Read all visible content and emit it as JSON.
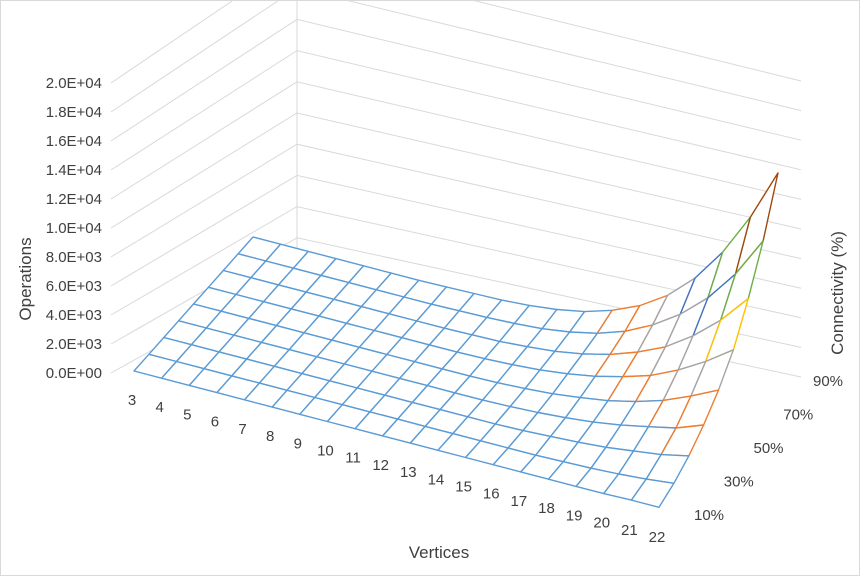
{
  "chart_data": {
    "type": "surface",
    "xlabel": "Vertices",
    "ylabel": "Connectivity (%)",
    "zlabel": "Operations",
    "x": [
      "3",
      "4",
      "5",
      "6",
      "7",
      "8",
      "9",
      "10",
      "11",
      "12",
      "13",
      "14",
      "15",
      "16",
      "17",
      "18",
      "19",
      "20",
      "21",
      "22"
    ],
    "y": [
      "10%",
      "20%",
      "30%",
      "40%",
      "50%",
      "60%",
      "70%",
      "80%",
      "90%"
    ],
    "y_tick_labels": [
      "10%",
      "30%",
      "50%",
      "70%",
      "90%"
    ],
    "z_tick_labels": [
      "0.0E+00",
      "2.0E+03",
      "4.0E+03",
      "6.0E+03",
      "8.0E+03",
      "1.0E+04",
      "1.2E+04",
      "1.4E+04",
      "1.6E+04",
      "1.8E+04",
      "2.0E+04"
    ],
    "zlim": [
      0,
      20000
    ],
    "band_colors": [
      "#5B9BD5",
      "#ED7D31",
      "#A5A5A5",
      "#FFC000",
      "#4472C4",
      "#70AD47",
      "#255E91",
      "#9E480E",
      "#636363",
      "#997300"
    ],
    "band_step": 2000,
    "values": [
      [
        0,
        0,
        0,
        0,
        0,
        0,
        0,
        0,
        0,
        0,
        0,
        0,
        0,
        0,
        0,
        0,
        0,
        0,
        50,
        50
      ],
      [
        0,
        0,
        0,
        0,
        0,
        0,
        0,
        0,
        0,
        0,
        0,
        0,
        0,
        0,
        0,
        50,
        100,
        200,
        350,
        550
      ],
      [
        0,
        0,
        0,
        0,
        0,
        0,
        0,
        0,
        0,
        0,
        0,
        0,
        0,
        50,
        150,
        250,
        400,
        650,
        900,
        1300
      ],
      [
        0,
        0,
        0,
        0,
        0,
        0,
        0,
        0,
        0,
        0,
        0,
        0,
        50,
        150,
        300,
        500,
        800,
        1200,
        1600,
        2300
      ],
      [
        0,
        0,
        0,
        0,
        0,
        0,
        0,
        0,
        0,
        0,
        0,
        50,
        150,
        300,
        550,
        850,
        1300,
        1900,
        2700,
        3600
      ],
      [
        0,
        0,
        0,
        0,
        0,
        0,
        0,
        0,
        0,
        0,
        50,
        150,
        300,
        550,
        900,
        1400,
        2000,
        2900,
        4000,
        5300
      ],
      [
        0,
        0,
        0,
        0,
        0,
        0,
        0,
        0,
        0,
        50,
        100,
        250,
        450,
        800,
        1300,
        2000,
        2900,
        4200,
        5800,
        7800
      ],
      [
        0,
        0,
        0,
        0,
        0,
        0,
        0,
        0,
        50,
        100,
        200,
        350,
        650,
        1100,
        1800,
        2800,
        4100,
        5800,
        8000,
        10800
      ],
      [
        0,
        0,
        0,
        0,
        0,
        0,
        0,
        50,
        100,
        150,
        300,
        550,
        950,
        1600,
        2500,
        3800,
        5600,
        8000,
        11000,
        14600
      ]
    ]
  }
}
